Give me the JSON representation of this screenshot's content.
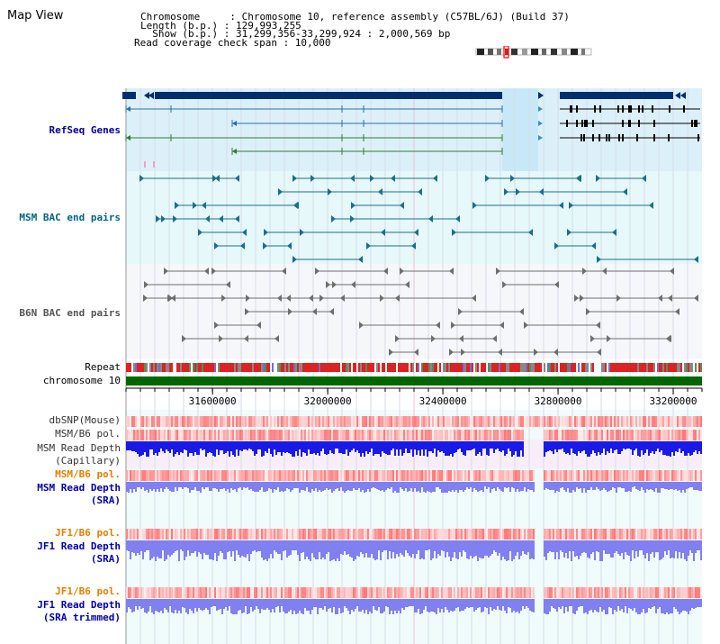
{
  "page": {
    "title": "Map View"
  },
  "info": {
    "chromosome_line": "Chromosome     : Chromosome 10, reference assembly (C57BL/6J) (Build 37)",
    "length_line": "Length (b.p.) : 129,993,255",
    "show_line": "  Show (b.p.) : 31,299,356-33,299,924 : 2,000,569 bp",
    "coverage_line": "Read coverage check span : 10,000"
  },
  "tracks": {
    "refseq": {
      "label": "RefSeq Genes",
      "color": "#000099"
    },
    "msm_bac": {
      "label": "MSM BAC end pairs",
      "color": "#006680"
    },
    "b6n_bac": {
      "label": "B6N BAC end pairs",
      "color": "#555555"
    },
    "repeat": {
      "label": "Repeat"
    },
    "chromosome": {
      "label": "chromosome 10"
    },
    "dbsnp": {
      "label": "dbSNP(Mouse)"
    },
    "msm_b6_pol": {
      "label": "MSM/B6 pol."
    },
    "msm_depth_cap": {
      "label_line1": "MSM Read Depth",
      "label_line2": "(Capillary)"
    },
    "msm_b6_pol2": {
      "label": "MSM/B6 pol.",
      "color": "#e08000"
    },
    "msm_depth_sra": {
      "label_line1": "MSM Read Depth",
      "label_line2": "(SRA)",
      "color": "#0000aa"
    },
    "jf1_b6_pol": {
      "label": "JF1/B6 pol.",
      "color": "#e08000"
    },
    "jf1_depth_sra": {
      "label_line1": "JF1 Read Depth",
      "label_line2": "(SRA)",
      "color": "#0000aa"
    },
    "jf1_b6_pol2": {
      "label": "JF1/B6 pol.",
      "color": "#e08000"
    },
    "jf1_depth_trim": {
      "label_line1": "JF1 Read Depth",
      "label_line2": "(SRA trimmed)",
      "color": "#0000aa"
    }
  },
  "axis": {
    "ticks": [
      "31600000",
      "32000000",
      "32400000",
      "32800000",
      "33200000"
    ],
    "range_bp": [
      31299356,
      33299924
    ]
  },
  "colors": {
    "refseq_bg": "#dcf0fa",
    "bac_bg": "#e6f8fa",
    "b6n_bg": "#f5f7fa",
    "depth_bg": "#f0fbfb",
    "gene_dark": "#002f6c",
    "gene_green": "#2e7d32",
    "chrom_green": "#006600",
    "depth_blue": "#1a1ae6",
    "depth_light": "#8080f0"
  }
}
